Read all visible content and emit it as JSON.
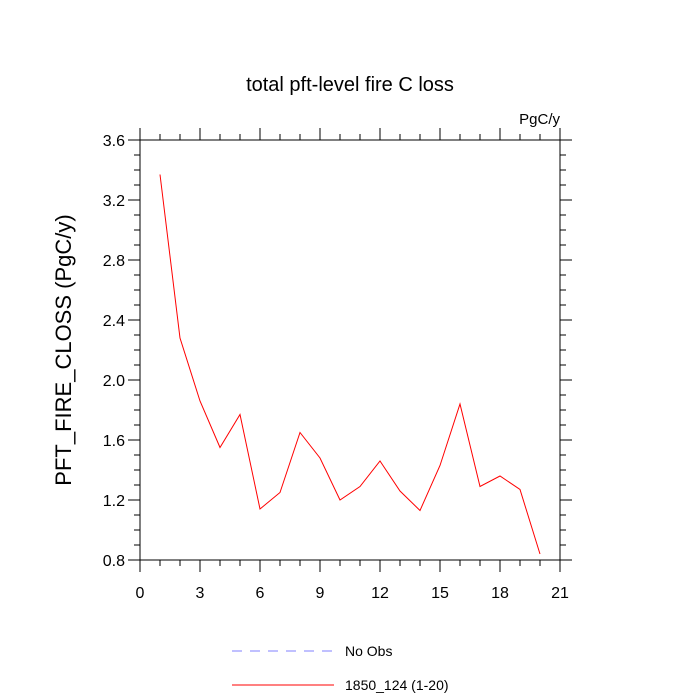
{
  "chart_data": {
    "type": "line",
    "title": "total pft-level fire C loss",
    "units_label": "PgC/y",
    "xlabel": "",
    "ylabel": "PFT_FIRE_CLOSS  (PgC/y)",
    "xlim": [
      0,
      21
    ],
    "ylim": [
      0.8,
      3.6
    ],
    "x_ticks": [
      0,
      3,
      6,
      9,
      12,
      15,
      18,
      21
    ],
    "x_tick_labels": [
      "0",
      "3",
      "6",
      "9",
      "12",
      "15",
      "18",
      "21"
    ],
    "y_ticks": [
      0.8,
      1.2,
      1.6,
      2.0,
      2.4,
      2.8,
      3.2,
      3.6
    ],
    "y_tick_labels": [
      "0.8",
      "1.2",
      "1.6",
      "2.0",
      "2.4",
      "2.8",
      "3.2",
      "3.6"
    ],
    "grid": false,
    "legend_position": "bottom-center",
    "series": [
      {
        "name": "No Obs",
        "color": "#8080ff",
        "dash": "dashed",
        "x": [],
        "values": []
      },
      {
        "name": "1850_124 (1-20)",
        "color": "#ff0000",
        "dash": "solid",
        "x": [
          1,
          2,
          3,
          4,
          5,
          6,
          7,
          8,
          9,
          10,
          11,
          12,
          13,
          14,
          15,
          16,
          17,
          18,
          19,
          20
        ],
        "values": [
          3.37,
          2.28,
          1.86,
          1.55,
          1.77,
          1.14,
          1.25,
          1.65,
          1.48,
          1.2,
          1.29,
          1.46,
          1.26,
          1.13,
          1.43,
          1.84,
          1.29,
          1.36,
          1.27,
          0.84
        ]
      }
    ]
  }
}
